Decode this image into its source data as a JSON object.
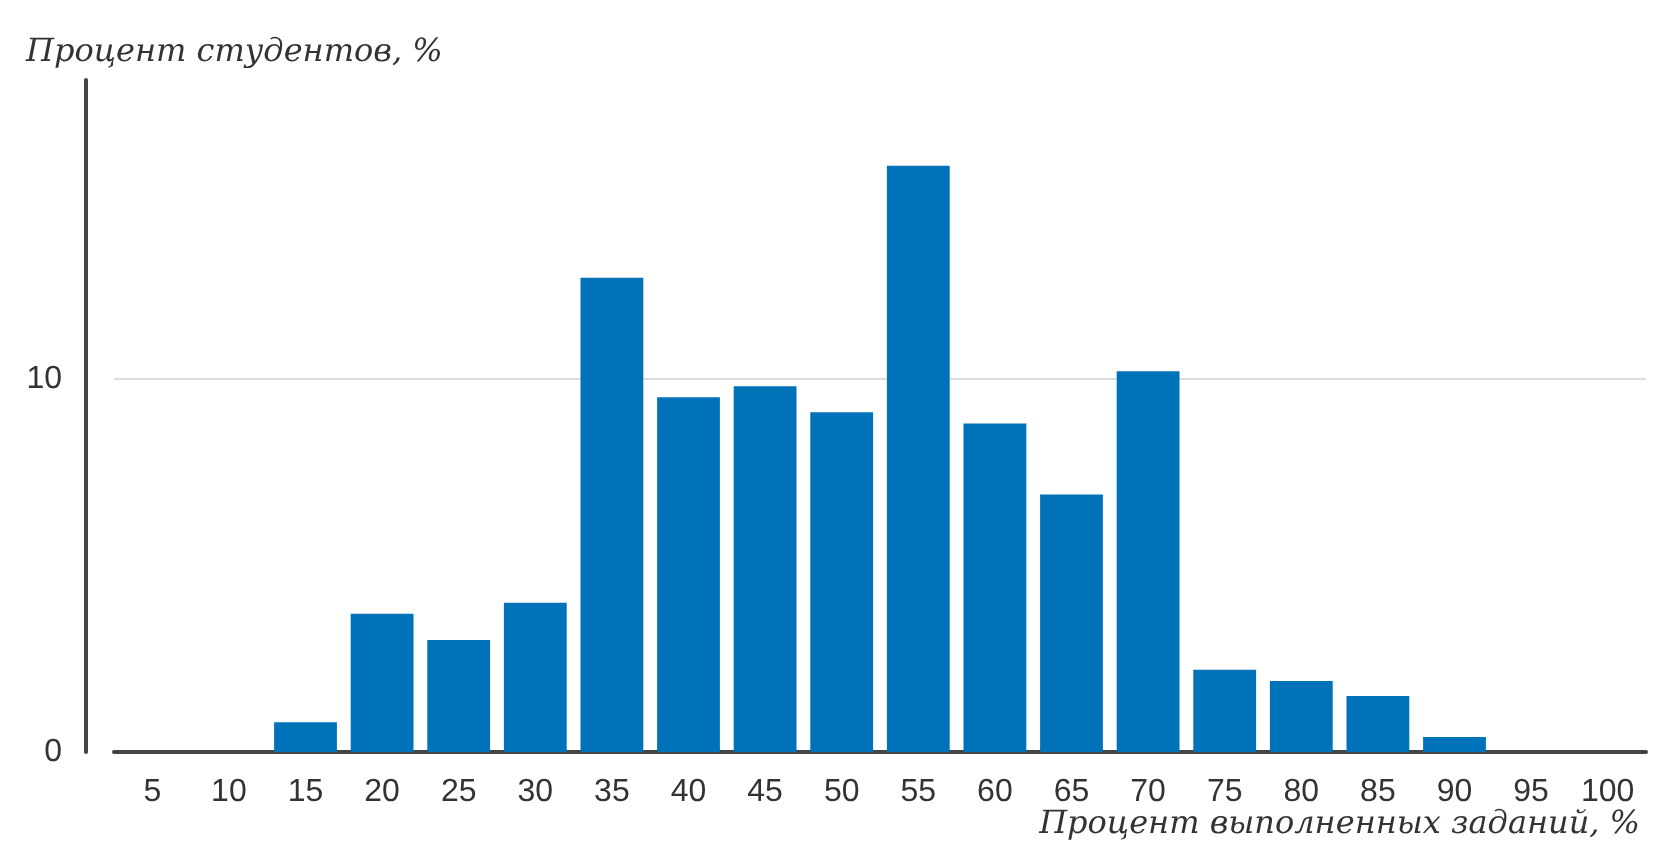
{
  "chart_data": {
    "type": "bar",
    "ylabel": "Процент студентов, %",
    "xlabel": "Процент выполненных заданий, %",
    "categories": [
      "5",
      "10",
      "15",
      "20",
      "25",
      "30",
      "35",
      "40",
      "45",
      "50",
      "55",
      "60",
      "65",
      "70",
      "75",
      "80",
      "85",
      "90",
      "95",
      "100"
    ],
    "values": [
      0,
      0,
      0.8,
      3.7,
      3.0,
      4.0,
      12.7,
      9.5,
      9.8,
      9.1,
      15.7,
      8.8,
      6.9,
      10.2,
      2.2,
      1.9,
      1.5,
      0.4,
      0,
      0
    ],
    "color": "#0072b9",
    "ylim": [
      0,
      18
    ],
    "yticks": [
      0,
      10
    ],
    "grid": "y"
  }
}
